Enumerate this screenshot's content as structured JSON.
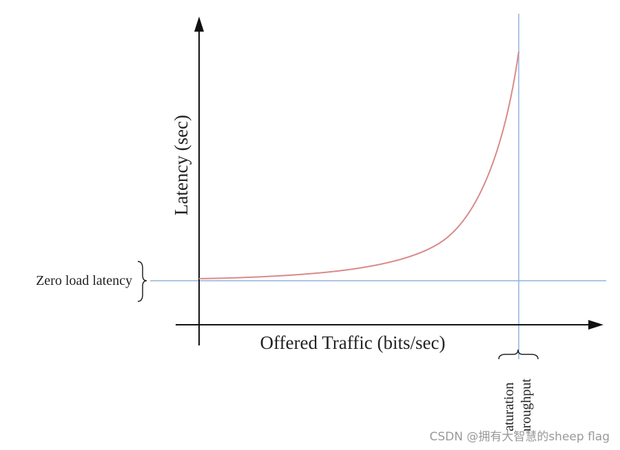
{
  "axes": {
    "y_label": "Latency (sec)",
    "x_label": "Offered Traffic (bits/sec)"
  },
  "annotations": {
    "zero_load": "Zero load latency",
    "saturation_line1": "Saturation",
    "saturation_line2": "throughput"
  },
  "watermark": "CSDN @拥有大智慧的sheep flag"
}
